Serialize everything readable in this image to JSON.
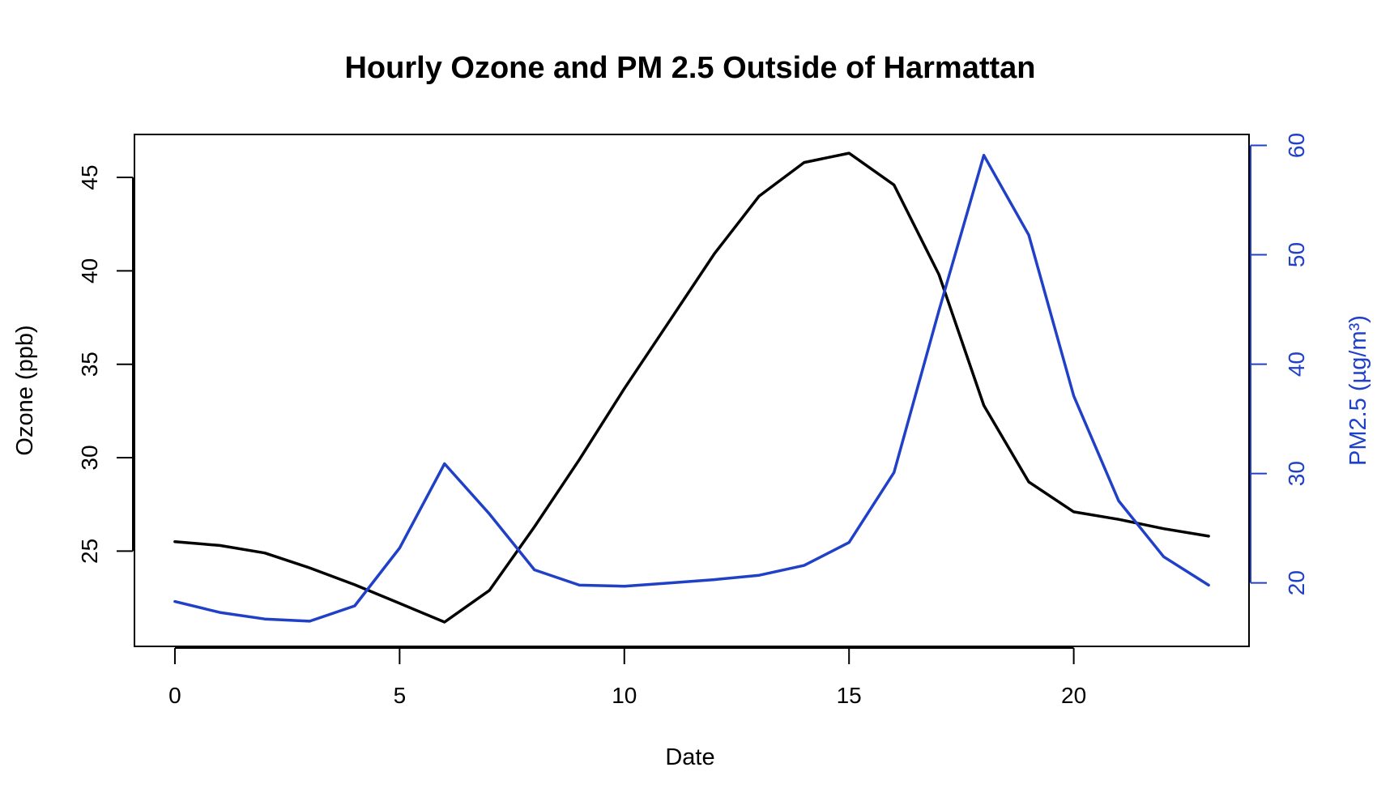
{
  "colors": {
    "ozone": "#000000",
    "pm25": "#2040C8",
    "frame": "#000000"
  },
  "chart_data": {
    "type": "line",
    "title": "Hourly Ozone and PM 2.5 Outside of Harmattan",
    "xlabel": "Date",
    "ylabel_left": "Ozone (ppb)",
    "ylabel_right": "PM2.5 (µg/m³)",
    "xlim": [
      -0.9,
      23.9
    ],
    "ylim_left": [
      19.9,
      47.3
    ],
    "ylim_right": [
      14.2,
      61.0
    ],
    "x_ticks": [
      0,
      5,
      10,
      15,
      20
    ],
    "y_ticks_left": [
      25,
      30,
      35,
      40,
      45
    ],
    "y_ticks_right": [
      20,
      30,
      40,
      50,
      60
    ],
    "grid": false,
    "legend": "none",
    "x": [
      0,
      1,
      2,
      3,
      4,
      5,
      6,
      7,
      8,
      9,
      10,
      11,
      12,
      13,
      14,
      15,
      16,
      17,
      18,
      19,
      20,
      21,
      22,
      23
    ],
    "series": [
      {
        "axis": "left",
        "color_key": "ozone",
        "values": [
          25.5,
          25.3,
          24.9,
          24.1,
          23.2,
          22.2,
          21.2,
          22.9,
          26.3,
          29.9,
          33.7,
          37.3,
          40.9,
          44.0,
          45.8,
          46.3,
          44.6,
          39.8,
          32.8,
          28.7,
          27.1,
          26.7,
          26.2,
          25.8
        ]
      },
      {
        "axis": "right",
        "color_key": "pm25",
        "values": [
          18.3,
          17.3,
          16.7,
          16.5,
          17.9,
          23.2,
          30.9,
          26.3,
          21.2,
          19.8,
          19.7,
          20.0,
          20.3,
          20.7,
          21.6,
          23.7,
          30.1,
          44.9,
          59.1,
          51.8,
          37.1,
          27.5,
          22.4,
          19.8
        ]
      }
    ]
  }
}
